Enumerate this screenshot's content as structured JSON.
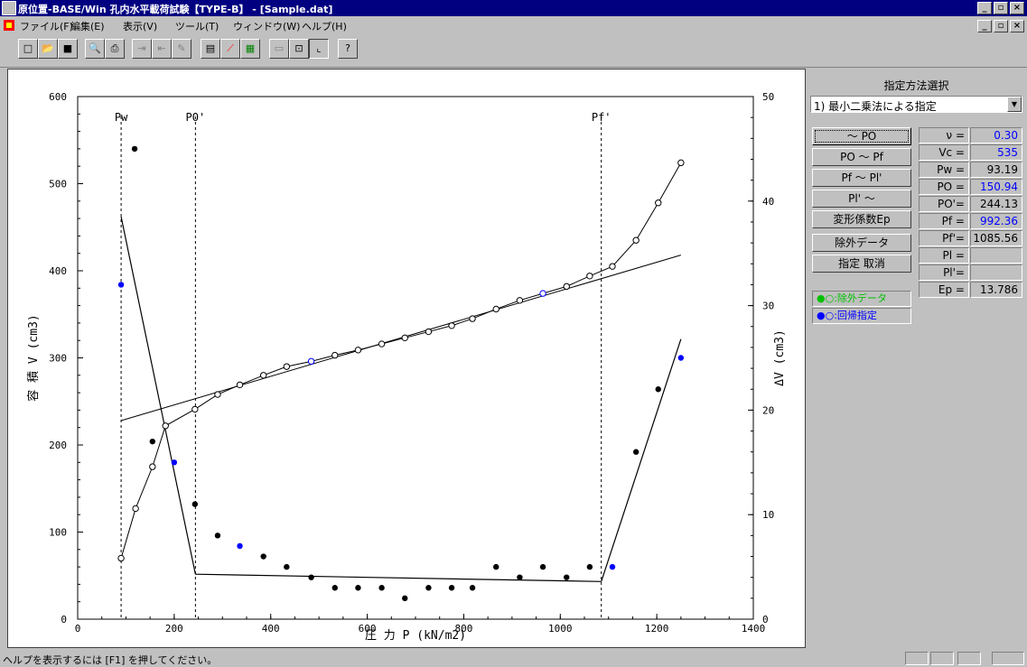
{
  "window": {
    "title": "原位置-BASE/Win 孔内水平載荷試験【TYPE-B】 - [Sample.dat]",
    "controls": [
      "_",
      "▫",
      "×"
    ]
  },
  "menu": {
    "items": [
      "ファイル(F)",
      "編集(E)",
      "表示(V)",
      "ツール(T)",
      "ウィンドウ(W)",
      "ヘルプ(H)"
    ]
  },
  "toolbar": {
    "buttons": [
      "new-icon",
      "open-icon",
      "save-icon",
      "preview-icon",
      "print-icon",
      "seq1-icon",
      "seq2-icon",
      "edit-icon",
      "table-icon",
      "curve-icon",
      "grid-icon",
      "panel-icon",
      "range-icon",
      "plot-icon",
      "help-icon"
    ]
  },
  "panel": {
    "title": "指定方法選択",
    "method": "1) 最小二乗法による指定",
    "buttons": [
      "～ PO",
      "PO ～ Pf",
      "Pf ～ Pl'",
      "Pl' ～",
      "変形係数Ep",
      "除外データ",
      "指定 取消"
    ],
    "params": [
      {
        "label": "ν =",
        "value": "0.30",
        "color": "#0000ff"
      },
      {
        "label": "Vc =",
        "value": "535",
        "color": "#0000ff"
      },
      {
        "label": "Pw =",
        "value": "93.19",
        "color": "#000000"
      },
      {
        "label": "PO =",
        "value": "150.94",
        "color": "#0000ff"
      },
      {
        "label": "PO'=",
        "value": "244.13",
        "color": "#000000"
      },
      {
        "label": "Pf =",
        "value": "992.36",
        "color": "#0000ff"
      },
      {
        "label": "Pf'=",
        "value": "1085.56",
        "color": "#000000"
      },
      {
        "label": "Pl =",
        "value": "",
        "color": "#000000"
      },
      {
        "label": "Pl'=",
        "value": "",
        "color": "#000000"
      },
      {
        "label": "Ep =",
        "value": "13.786",
        "color": "#000000"
      }
    ],
    "legend": [
      {
        "text": "●○:除外データ",
        "color": "#00c000"
      },
      {
        "text": "●○:回帰指定",
        "color": "#0000ff"
      }
    ]
  },
  "status": {
    "text": "ヘルプを表示するには [F1] を押してください。"
  },
  "chart_data": {
    "type": "scatter",
    "xlabel": "圧 力 P (kN/m2)",
    "ylabel_left": "容 積 V (cm3)",
    "ylabel_right": "ΔV (cm3)",
    "xlim": [
      0,
      1400
    ],
    "ylim_left": [
      0,
      600
    ],
    "ylim_right": [
      0,
      50
    ],
    "xticks": [
      0,
      200,
      400,
      600,
      800,
      1000,
      1200,
      1400
    ],
    "yticks_left": [
      0,
      100,
      200,
      300,
      400,
      500,
      600
    ],
    "yticks_right": [
      0,
      10,
      20,
      30,
      40,
      50
    ],
    "vlines": [
      {
        "label": "Pw",
        "x": 90
      },
      {
        "label": "PO'",
        "x": 244
      },
      {
        "label": "Pf'",
        "x": 1085
      }
    ],
    "volume_points": [
      [
        90,
        70,
        0
      ],
      [
        120,
        127,
        0
      ],
      [
        155,
        175,
        0
      ],
      [
        182,
        222,
        0
      ],
      [
        243,
        241,
        0
      ],
      [
        290,
        258,
        0
      ],
      [
        336,
        269,
        0
      ],
      [
        385,
        280,
        0
      ],
      [
        433,
        290,
        0
      ],
      [
        484,
        296,
        1
      ],
      [
        533,
        303,
        0
      ],
      [
        581,
        309,
        0
      ],
      [
        630,
        316,
        0
      ],
      [
        678,
        323,
        0
      ],
      [
        727,
        330,
        0
      ],
      [
        775,
        337,
        0
      ],
      [
        818,
        345,
        0
      ],
      [
        867,
        356,
        0
      ],
      [
        916,
        366,
        0
      ],
      [
        964,
        374,
        1
      ],
      [
        1013,
        382,
        0
      ],
      [
        1061,
        394,
        0
      ],
      [
        1108,
        405,
        0
      ],
      [
        1157,
        435,
        0
      ],
      [
        1203,
        478,
        0
      ],
      [
        1250,
        524,
        0
      ]
    ],
    "volume_curve": [
      [
        90,
        70
      ],
      [
        120,
        127
      ],
      [
        155,
        175
      ],
      [
        182,
        222
      ],
      [
        243,
        241
      ],
      [
        290,
        258
      ],
      [
        336,
        269
      ],
      [
        385,
        280
      ],
      [
        433,
        290
      ],
      [
        484,
        296
      ],
      [
        533,
        303
      ],
      [
        581,
        309
      ],
      [
        630,
        316
      ],
      [
        678,
        323
      ],
      [
        727,
        330
      ],
      [
        775,
        337
      ],
      [
        818,
        345
      ],
      [
        867,
        356
      ],
      [
        916,
        366
      ],
      [
        964,
        374
      ],
      [
        1013,
        382
      ],
      [
        1061,
        394
      ],
      [
        1108,
        405
      ],
      [
        1157,
        435
      ],
      [
        1203,
        478
      ],
      [
        1250,
        524
      ]
    ],
    "regression_line": [
      [
        90,
        228
      ],
      [
        1250,
        418
      ]
    ],
    "dv_points": [
      [
        90,
        32,
        1
      ],
      [
        118,
        45,
        0
      ],
      [
        155,
        17,
        0
      ],
      [
        200,
        15,
        1
      ],
      [
        243,
        11,
        0
      ],
      [
        290,
        8,
        0
      ],
      [
        336,
        7,
        1
      ],
      [
        385,
        6,
        0
      ],
      [
        433,
        5,
        0
      ],
      [
        484,
        4,
        0
      ],
      [
        533,
        3,
        0
      ],
      [
        581,
        3,
        0
      ],
      [
        630,
        3,
        0
      ],
      [
        678,
        2,
        0
      ],
      [
        727,
        3,
        0
      ],
      [
        775,
        3,
        0
      ],
      [
        818,
        3,
        0
      ],
      [
        867,
        5,
        0
      ],
      [
        916,
        4,
        0
      ],
      [
        964,
        5,
        0
      ],
      [
        1013,
        4,
        0
      ],
      [
        1061,
        5,
        0
      ],
      [
        1108,
        5,
        1
      ],
      [
        1157,
        16,
        0
      ],
      [
        1203,
        22,
        0
      ],
      [
        1250,
        25,
        1
      ]
    ],
    "dv_lines": [
      [
        [
          90,
          38.5
        ],
        [
          244,
          4.3
        ]
      ],
      [
        [
          244,
          4.3
        ],
        [
          1085,
          3.6
        ]
      ],
      [
        [
          1085,
          3.6
        ],
        [
          1250,
          26.8
        ]
      ]
    ]
  }
}
